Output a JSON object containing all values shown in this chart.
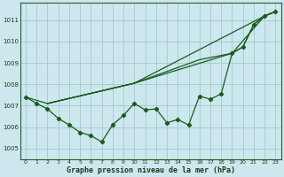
{
  "xlabel": "Graphe pression niveau de la mer (hPa)",
  "bg_color": "#cce8ee",
  "plot_bg_color": "#cce8ee",
  "line_color": "#1a5c1a",
  "grid_color": "#a8cdd4",
  "ylim": [
    1004.5,
    1011.8
  ],
  "xlim": [
    -0.5,
    23.5
  ],
  "yticks": [
    1005,
    1006,
    1007,
    1008,
    1009,
    1010,
    1011
  ],
  "xticks": [
    0,
    1,
    2,
    3,
    4,
    5,
    6,
    7,
    8,
    9,
    10,
    11,
    12,
    13,
    14,
    15,
    16,
    17,
    18,
    19,
    20,
    21,
    22,
    23
  ],
  "series1_x": [
    0,
    1,
    2,
    3,
    4,
    5,
    6,
    7,
    8,
    9,
    10,
    11,
    12,
    13,
    14,
    15,
    16,
    17,
    18,
    19,
    20,
    21,
    22,
    23
  ],
  "series1_y": [
    1007.4,
    1007.1,
    1006.85,
    1006.4,
    1006.1,
    1005.75,
    1005.6,
    1005.3,
    1006.1,
    1006.55,
    1007.1,
    1006.8,
    1006.85,
    1006.2,
    1006.35,
    1006.1,
    1007.45,
    1007.3,
    1007.55,
    1009.45,
    1009.75,
    1010.8,
    1011.2,
    1011.4
  ],
  "series2_x": [
    0,
    2,
    10,
    22,
    23
  ],
  "series2_y": [
    1007.4,
    1007.1,
    1008.05,
    1011.2,
    1011.4
  ],
  "series3_x": [
    2,
    10,
    16,
    19,
    20,
    21,
    22,
    23
  ],
  "series3_y": [
    1007.1,
    1008.05,
    1009.15,
    1009.45,
    1009.75,
    1010.8,
    1011.2,
    1011.4
  ],
  "series4_x": [
    2,
    10,
    19,
    22,
    23
  ],
  "series4_y": [
    1007.1,
    1008.05,
    1009.45,
    1011.2,
    1011.4
  ]
}
